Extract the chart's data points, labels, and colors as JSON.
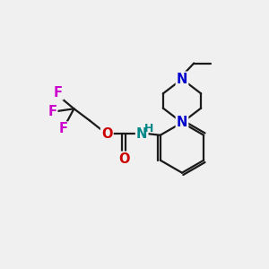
{
  "bg_color": "#f0f0f0",
  "bond_color": "#1a1a1a",
  "N_color": "#0000cc",
  "O_color": "#cc0000",
  "F_color": "#cc00cc",
  "NH_color": "#008888",
  "line_width": 1.6,
  "font_size": 10.5,
  "xlim": [
    0,
    10
  ],
  "ylim": [
    0,
    10
  ]
}
